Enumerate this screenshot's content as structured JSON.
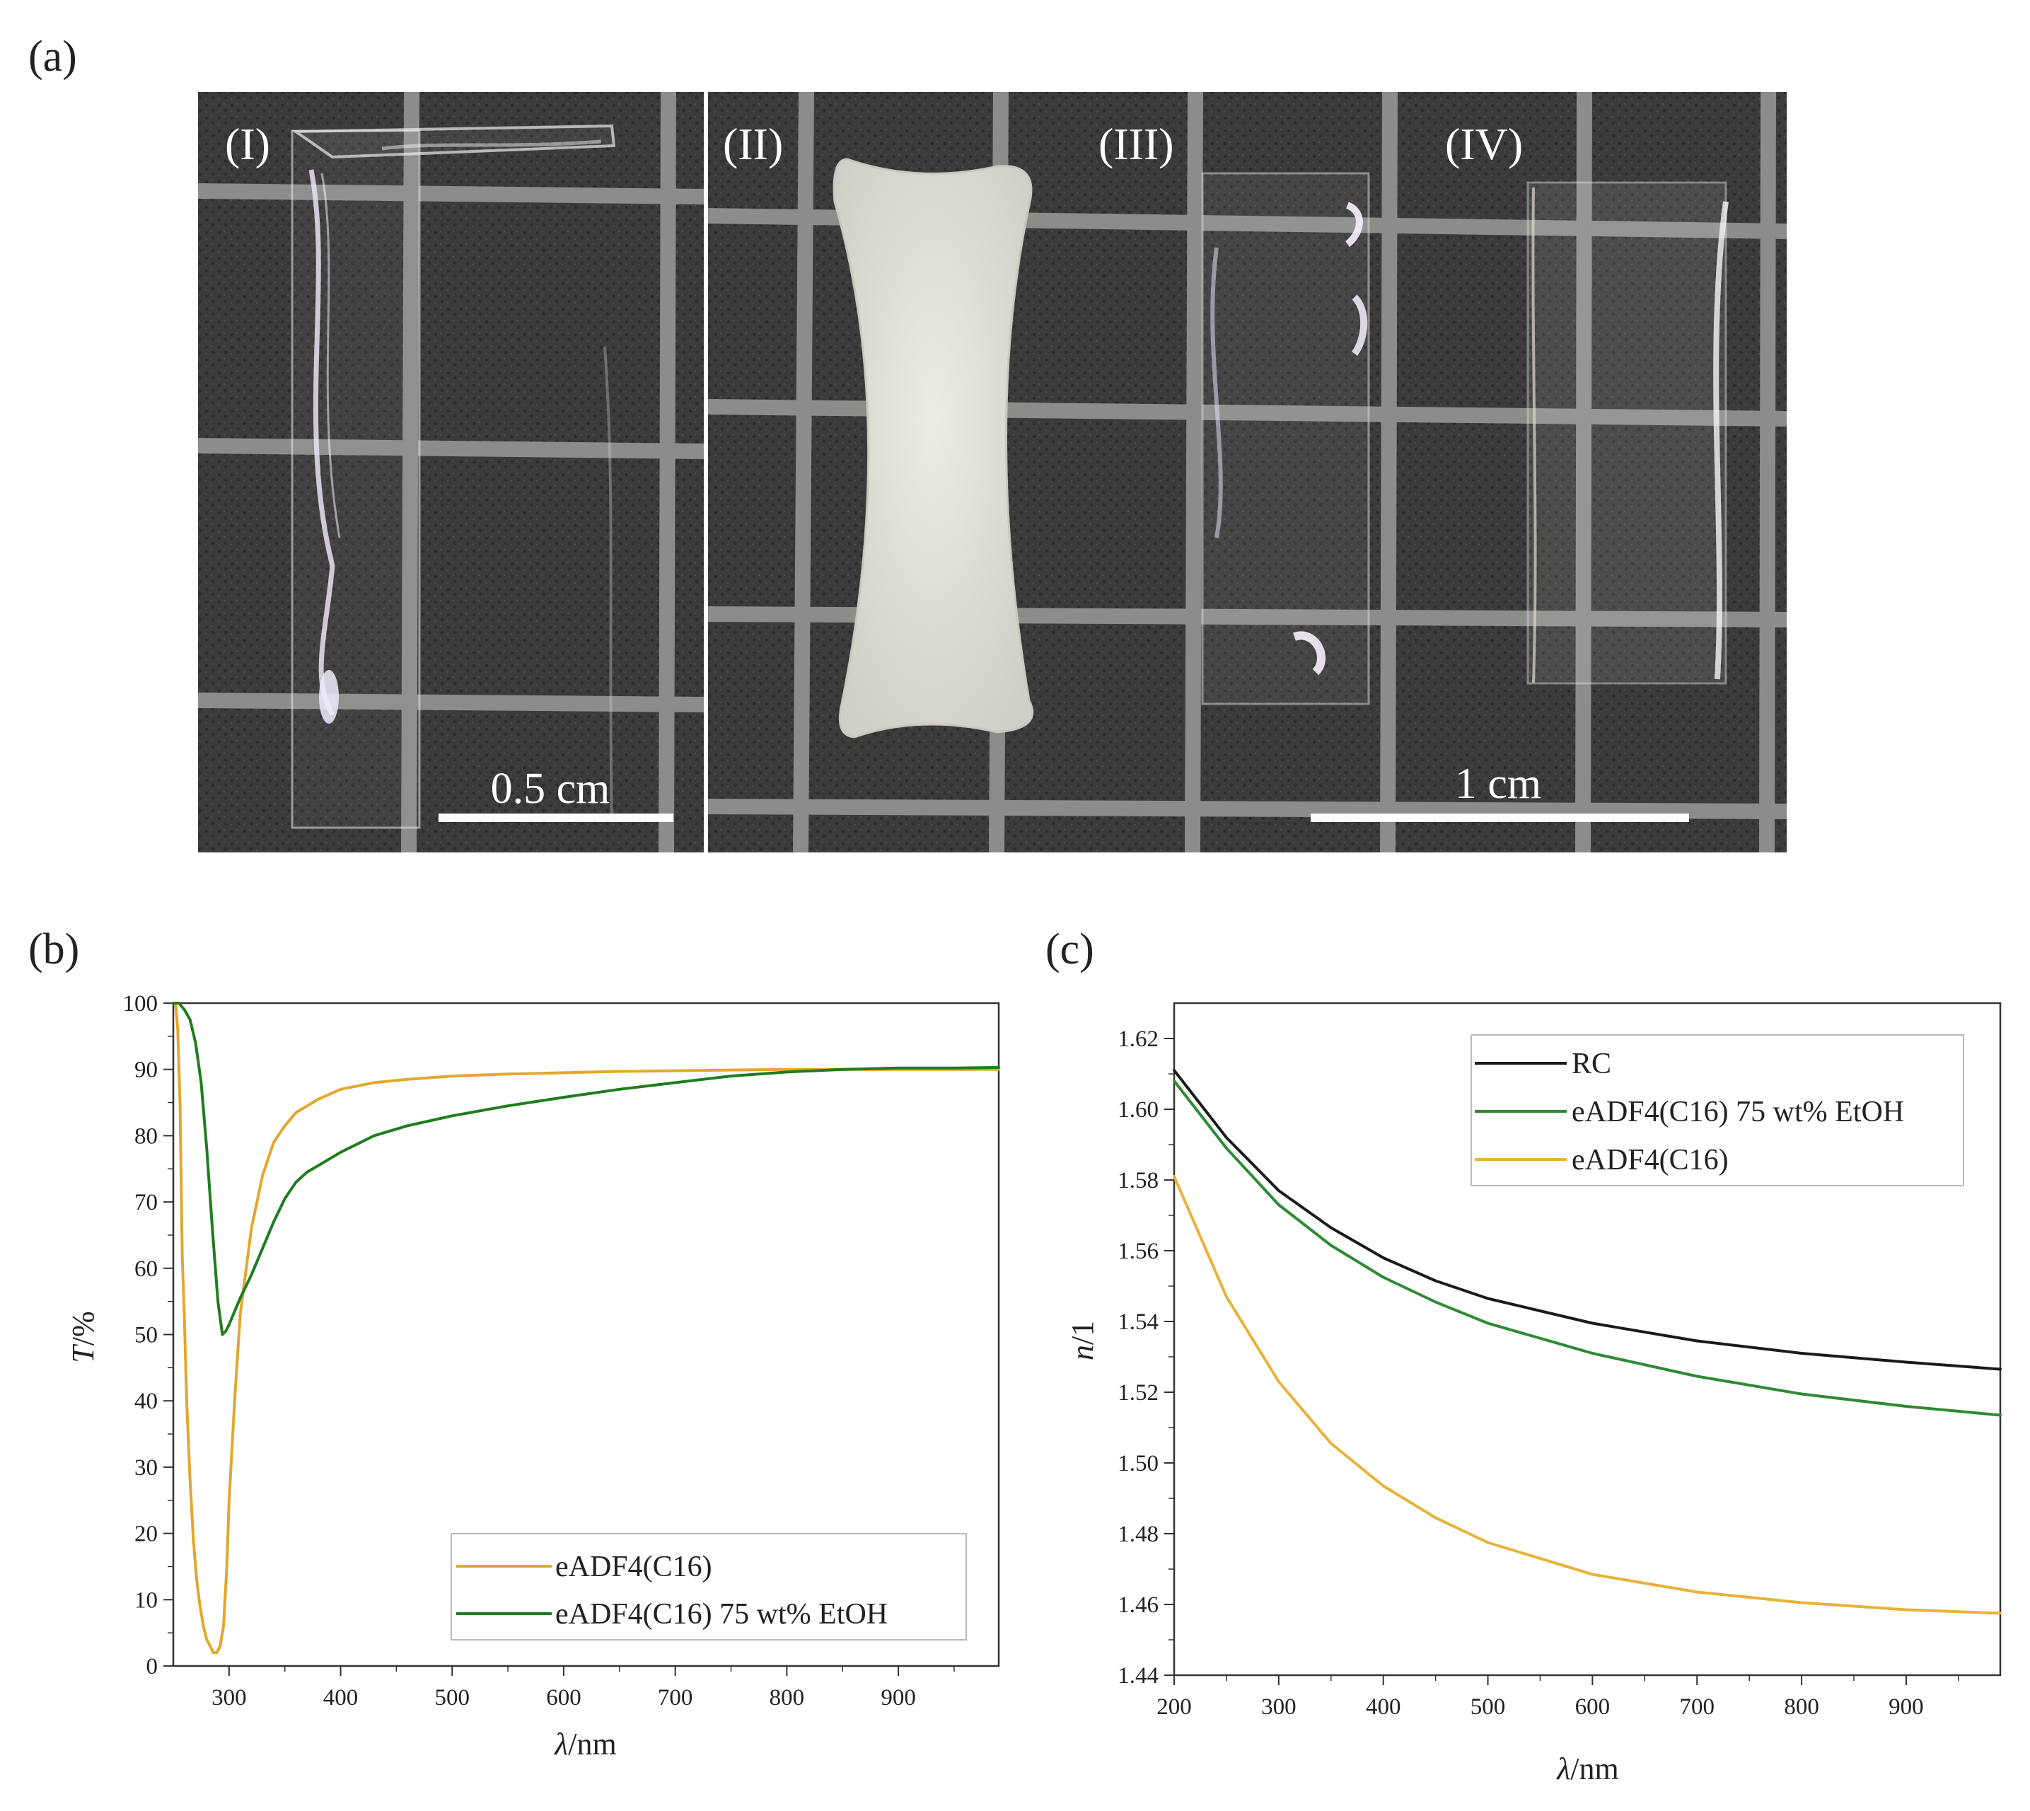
{
  "panel_labels": {
    "a": "(a)",
    "b": "(b)",
    "c": "(c)"
  },
  "photo": {
    "sample_labels": [
      "(I)",
      "(II)",
      "(III)",
      "(IV)"
    ],
    "scale_bar_left": "0.5 cm",
    "scale_bar_right": "1 cm",
    "colors": {
      "background": "#3b3b3b",
      "grid": "#8a8d89",
      "divider": "#ffffff",
      "opaque_film": "#e3e3da"
    }
  },
  "chart_data": [
    {
      "type": "line",
      "panel": "b",
      "xlabel_italic": "λ",
      "xlabel_unit": "/nm",
      "ylabel_italic": "T",
      "ylabel_unit": "/%",
      "xlim": [
        250,
        990
      ],
      "ylim": [
        0,
        100
      ],
      "xticks": [
        300,
        400,
        500,
        600,
        700,
        800,
        900
      ],
      "xtick_labels": [
        "300",
        "400",
        "500",
        "600",
        "700",
        "800",
        "900"
      ],
      "yticks": [
        0,
        10,
        20,
        30,
        40,
        50,
        60,
        70,
        80,
        90,
        100
      ],
      "ytick_labels": [
        "0",
        "10",
        "20",
        "30",
        "40",
        "50",
        "60",
        "70",
        "80",
        "90",
        "100"
      ],
      "legend_position": "bottom-right",
      "series": [
        {
          "name": "eADF4(C16)",
          "color": "#e3a72e",
          "x": [
            252,
            254,
            256,
            258,
            260,
            262,
            265,
            268,
            271,
            274,
            277,
            280,
            283,
            286,
            289,
            292,
            295,
            298,
            300,
            305,
            310,
            320,
            330,
            340,
            350,
            360,
            380,
            400,
            430,
            460,
            500,
            550,
            600,
            650,
            700,
            750,
            800,
            850,
            900,
            950,
            990
          ],
          "y": [
            100,
            96,
            85,
            62,
            52,
            40,
            28,
            19,
            13,
            9,
            6,
            4,
            3,
            2,
            2,
            3,
            6,
            15,
            25,
            40,
            53,
            66,
            74,
            79,
            81.5,
            83.5,
            85.5,
            87,
            88,
            88.5,
            89,
            89.3,
            89.5,
            89.7,
            89.8,
            89.9,
            90,
            90,
            90,
            90,
            90
          ]
        },
        {
          "name": "eADF4(C16) 75 wt% EtOH",
          "color": "#1e7d1e",
          "x": [
            250,
            255,
            260,
            265,
            270,
            275,
            280,
            285,
            290,
            294,
            297,
            300,
            305,
            310,
            320,
            330,
            340,
            350,
            360,
            370,
            380,
            400,
            430,
            460,
            500,
            550,
            600,
            650,
            700,
            750,
            800,
            850,
            900,
            950,
            990
          ],
          "y": [
            100,
            100,
            99,
            97.5,
            94,
            88,
            78,
            66,
            55,
            50,
            50.5,
            51.5,
            53.5,
            55.5,
            59,
            63,
            67,
            70.5,
            73,
            74.5,
            75.5,
            77.5,
            80,
            81.5,
            83,
            84.5,
            85.8,
            87,
            88,
            89,
            89.6,
            90,
            90.2,
            90.2,
            90.3
          ]
        }
      ]
    },
    {
      "type": "line",
      "panel": "c",
      "xlabel_italic": "λ",
      "xlabel_unit": "/nm",
      "ylabel_italic": "n",
      "ylabel_unit": "/1",
      "xlim": [
        200,
        990
      ],
      "ylim": [
        1.44,
        1.63
      ],
      "xticks": [
        200,
        300,
        400,
        500,
        600,
        700,
        800,
        900
      ],
      "xtick_labels": [
        "200",
        "300",
        "400",
        "500",
        "600",
        "700",
        "800",
        "900"
      ],
      "yticks": [
        1.44,
        1.46,
        1.48,
        1.5,
        1.52,
        1.54,
        1.56,
        1.58,
        1.6,
        1.62
      ],
      "ytick_labels": [
        "1.44",
        "1.46",
        "1.48",
        "1.50",
        "1.52",
        "1.54",
        "1.56",
        "1.58",
        "1.60",
        "1.62"
      ],
      "legend_position": "top-right",
      "series": [
        {
          "name": "RC",
          "color": "#1a1a1a",
          "x": [
            200,
            250,
            300,
            350,
            400,
            450,
            500,
            600,
            700,
            800,
            900,
            990
          ],
          "y": [
            1.611,
            1.592,
            1.577,
            1.5665,
            1.558,
            1.5515,
            1.5465,
            1.5395,
            1.5345,
            1.531,
            1.5285,
            1.5265
          ]
        },
        {
          "name": "eADF4(C16) 75 wt% EtOH",
          "color": "#2e8a34",
          "x": [
            200,
            250,
            300,
            350,
            400,
            450,
            500,
            600,
            700,
            800,
            900,
            990
          ],
          "y": [
            1.608,
            1.589,
            1.573,
            1.5615,
            1.5525,
            1.5455,
            1.5395,
            1.531,
            1.5245,
            1.5195,
            1.516,
            1.5135
          ]
        },
        {
          "name": "eADF4(C16)",
          "color": "#e8b237",
          "x": [
            200,
            250,
            300,
            350,
            400,
            450,
            500,
            600,
            700,
            800,
            900,
            990
          ],
          "y": [
            1.581,
            1.547,
            1.523,
            1.5055,
            1.4935,
            1.4845,
            1.4775,
            1.4685,
            1.4635,
            1.4605,
            1.4585,
            1.4575
          ]
        }
      ]
    }
  ]
}
